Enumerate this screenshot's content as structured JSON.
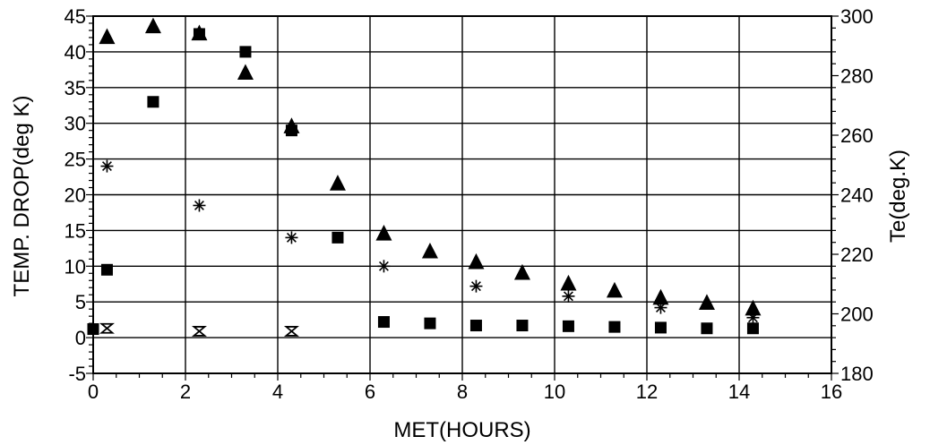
{
  "chart_data": {
    "type": "scatter",
    "title": "",
    "xlabel": "MET(HOURS)",
    "ylabel": "TEMP. DROP(deg K)",
    "y2label": "Te(deg.K)",
    "xlim": [
      0,
      16
    ],
    "ylim": [
      -5,
      45
    ],
    "y2lim": [
      180,
      300
    ],
    "xticks": [
      0,
      2,
      4,
      6,
      8,
      10,
      12,
      14,
      16
    ],
    "yticks": [
      -5,
      0,
      5,
      10,
      15,
      20,
      25,
      30,
      35,
      40,
      45
    ],
    "y2ticks": [
      180,
      200,
      220,
      240,
      260,
      280,
      300
    ],
    "grid": "horizontal and vertical lines at major ticks",
    "series": [
      {
        "marker": "square",
        "x": [
          0.0,
          0.3,
          1.3,
          2.3,
          3.3,
          4.3,
          5.3,
          6.3,
          7.3,
          8.3,
          9.3,
          10.3,
          11.3,
          12.3,
          13.3,
          14.3
        ],
        "y": [
          1.2,
          9.5,
          33,
          42.5,
          40,
          29,
          14,
          2.2,
          2.0,
          1.7,
          1.7,
          1.6,
          1.5,
          1.4,
          1.3,
          1.3
        ]
      },
      {
        "marker": "triangle",
        "x": [
          0.3,
          1.3,
          2.3,
          3.3,
          4.3,
          5.3,
          6.3,
          7.3,
          8.3,
          9.3,
          10.3,
          11.3,
          12.3,
          13.3,
          14.3
        ],
        "y": [
          42,
          43.5,
          42.5,
          37,
          29.5,
          21.5,
          14.5,
          12,
          10.5,
          9,
          7.5,
          6.5,
          5.5,
          4.8,
          4.0
        ]
      },
      {
        "marker": "asterisk",
        "x": [
          0.3,
          2.3,
          4.3,
          6.3,
          8.3,
          10.3,
          12.3,
          14.3
        ],
        "y": [
          24,
          18.5,
          14,
          10,
          7.2,
          5.8,
          4.2,
          2.8
        ]
      },
      {
        "marker": "hourglass",
        "x": [
          0.3,
          2.3,
          4.3
        ],
        "y": [
          1.3,
          0.9,
          0.9
        ]
      }
    ]
  }
}
